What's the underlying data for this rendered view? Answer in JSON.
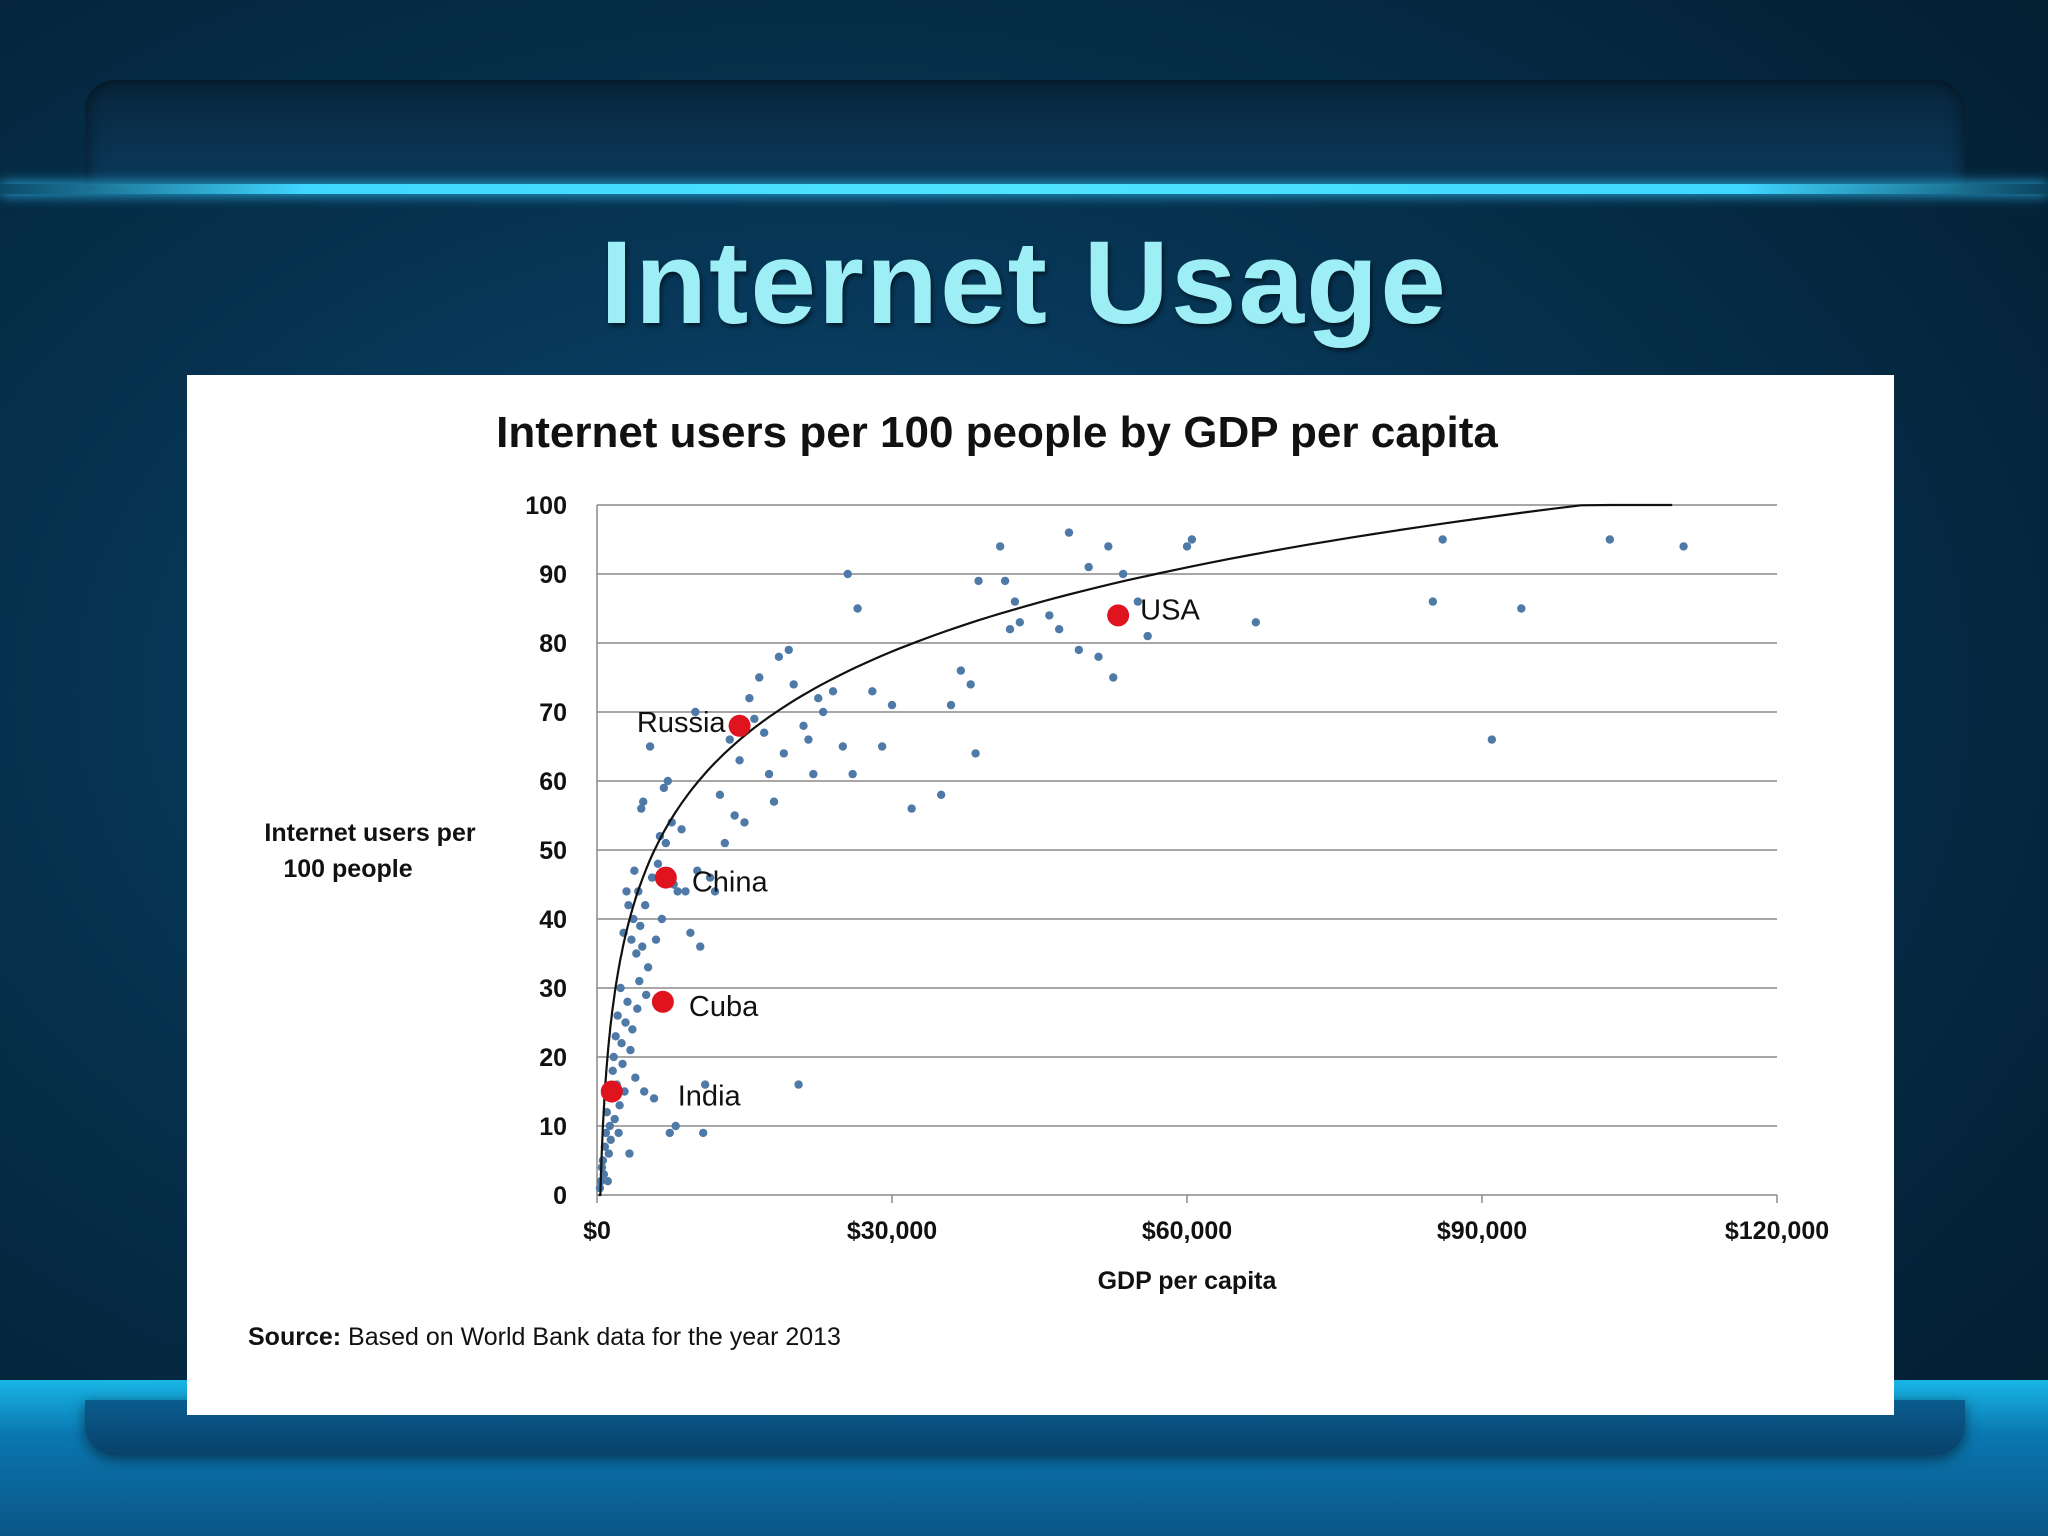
{
  "slide": {
    "title": "Internet Usage",
    "title_color": "#9eeef6"
  },
  "source": {
    "label": "Source:",
    "text": "Based on World Bank data for the year 2013"
  },
  "chart_data": {
    "type": "scatter",
    "title": "Internet users per 100 people by GDP per capita",
    "xlabel": "GDP per capita",
    "ylabel": "Internet users per 100 people",
    "xlim": [
      0,
      120000
    ],
    "ylim": [
      0,
      100
    ],
    "x_ticks": [
      0,
      30000,
      60000,
      90000,
      120000
    ],
    "x_tick_labels": [
      "$0",
      "$30,000",
      "$60,000",
      "$90,000",
      "$120,000"
    ],
    "y_ticks": [
      0,
      10,
      20,
      30,
      40,
      50,
      60,
      70,
      80,
      90,
      100
    ],
    "y_tick_labels": [
      "0",
      "10",
      "20",
      "30",
      "40",
      "50",
      "60",
      "70",
      "80",
      "90",
      "100"
    ],
    "grid": "horizontal",
    "point_color": "#4f7aa8",
    "highlight_color": "#e0141e",
    "trendline": "logarithmic",
    "highlighted": [
      {
        "name": "USA",
        "x": 53000,
        "y": 84
      },
      {
        "name": "Russia",
        "x": 14500,
        "y": 68
      },
      {
        "name": "China",
        "x": 7000,
        "y": 46
      },
      {
        "name": "Cuba",
        "x": 6700,
        "y": 28
      },
      {
        "name": "India",
        "x": 1500,
        "y": 15
      }
    ],
    "points": [
      [
        300,
        1
      ],
      [
        400,
        2
      ],
      [
        500,
        4
      ],
      [
        600,
        5
      ],
      [
        700,
        3
      ],
      [
        800,
        7
      ],
      [
        900,
        9
      ],
      [
        1000,
        12
      ],
      [
        1100,
        2
      ],
      [
        1200,
        6
      ],
      [
        1300,
        10
      ],
      [
        1400,
        8
      ],
      [
        1500,
        14
      ],
      [
        1600,
        18
      ],
      [
        1700,
        20
      ],
      [
        1800,
        11
      ],
      [
        1900,
        23
      ],
      [
        2000,
        16
      ],
      [
        2100,
        26
      ],
      [
        2200,
        9
      ],
      [
        2300,
        13
      ],
      [
        2400,
        30
      ],
      [
        2500,
        22
      ],
      [
        2600,
        19
      ],
      [
        2700,
        38
      ],
      [
        2800,
        15
      ],
      [
        2900,
        25
      ],
      [
        3000,
        44
      ],
      [
        3100,
        28
      ],
      [
        3200,
        42
      ],
      [
        3300,
        6
      ],
      [
        3400,
        21
      ],
      [
        3500,
        37
      ],
      [
        3600,
        24
      ],
      [
        3700,
        40
      ],
      [
        3800,
        47
      ],
      [
        3900,
        17
      ],
      [
        4000,
        35
      ],
      [
        4100,
        27
      ],
      [
        4200,
        44
      ],
      [
        4300,
        31
      ],
      [
        4400,
        39
      ],
      [
        4500,
        56
      ],
      [
        4600,
        36
      ],
      [
        4700,
        57
      ],
      [
        4800,
        15
      ],
      [
        4900,
        42
      ],
      [
        5000,
        29
      ],
      [
        5200,
        33
      ],
      [
        5400,
        65
      ],
      [
        5600,
        46
      ],
      [
        5800,
        14
      ],
      [
        6000,
        37
      ],
      [
        6200,
        48
      ],
      [
        6400,
        52
      ],
      [
        6600,
        40
      ],
      [
        6800,
        59
      ],
      [
        7000,
        51
      ],
      [
        7200,
        60
      ],
      [
        7400,
        9
      ],
      [
        7600,
        54
      ],
      [
        7800,
        45
      ],
      [
        8000,
        10
      ],
      [
        8200,
        44
      ],
      [
        8600,
        53
      ],
      [
        9000,
        44
      ],
      [
        9500,
        38
      ],
      [
        10000,
        70
      ],
      [
        10200,
        47
      ],
      [
        10500,
        36
      ],
      [
        10800,
        9
      ],
      [
        11000,
        16
      ],
      [
        11500,
        46
      ],
      [
        12000,
        44
      ],
      [
        12500,
        58
      ],
      [
        13000,
        51
      ],
      [
        13500,
        66
      ],
      [
        14000,
        55
      ],
      [
        14500,
        63
      ],
      [
        15000,
        54
      ],
      [
        15500,
        72
      ],
      [
        16000,
        69
      ],
      [
        16500,
        75
      ],
      [
        17000,
        67
      ],
      [
        17500,
        61
      ],
      [
        18000,
        57
      ],
      [
        18500,
        78
      ],
      [
        19000,
        64
      ],
      [
        19500,
        79
      ],
      [
        20000,
        74
      ],
      [
        20500,
        16
      ],
      [
        21000,
        68
      ],
      [
        21500,
        66
      ],
      [
        22000,
        61
      ],
      [
        22500,
        72
      ],
      [
        23000,
        70
      ],
      [
        24000,
        73
      ],
      [
        25000,
        65
      ],
      [
        25500,
        90
      ],
      [
        26000,
        61
      ],
      [
        26500,
        85
      ],
      [
        28000,
        73
      ],
      [
        29000,
        65
      ],
      [
        30000,
        71
      ],
      [
        32000,
        56
      ],
      [
        35000,
        58
      ],
      [
        36000,
        71
      ],
      [
        37000,
        76
      ],
      [
        38000,
        74
      ],
      [
        38500,
        64
      ],
      [
        38800,
        89
      ],
      [
        41000,
        94
      ],
      [
        41500,
        89
      ],
      [
        42000,
        82
      ],
      [
        42500,
        86
      ],
      [
        43000,
        83
      ],
      [
        46000,
        84
      ],
      [
        47000,
        82
      ],
      [
        48000,
        96
      ],
      [
        49000,
        79
      ],
      [
        50000,
        91
      ],
      [
        51000,
        78
      ],
      [
        52000,
        94
      ],
      [
        52500,
        75
      ],
      [
        53500,
        90
      ],
      [
        55000,
        86
      ],
      [
        56000,
        81
      ],
      [
        60000,
        94
      ],
      [
        60500,
        95
      ],
      [
        67000,
        83
      ],
      [
        85000,
        86
      ],
      [
        86000,
        95
      ],
      [
        91000,
        66
      ],
      [
        94000,
        85
      ],
      [
        103000,
        95
      ],
      [
        110500,
        94
      ]
    ]
  }
}
